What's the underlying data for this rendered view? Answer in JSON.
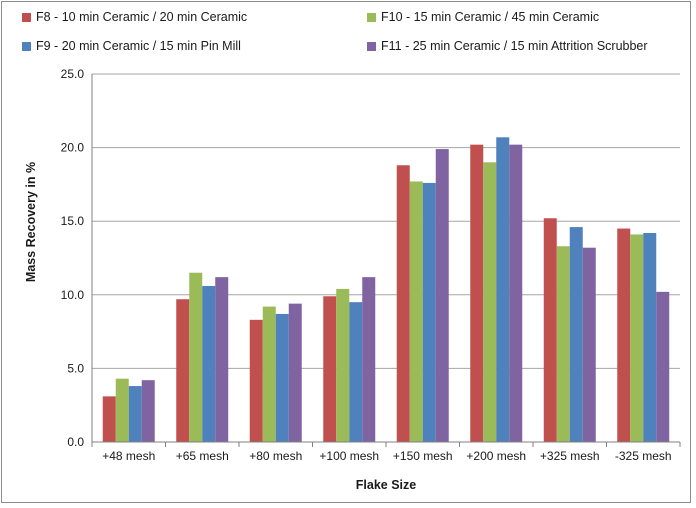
{
  "chart_data": {
    "type": "bar",
    "title": "",
    "xlabel": "Flake Size",
    "ylabel": "Mass Recovery in %",
    "ylim": [
      0,
      25
    ],
    "yticks": [
      "0.0",
      "5.0",
      "10.0",
      "15.0",
      "20.0",
      "25.0"
    ],
    "grid": "horizontal",
    "legend_position": "top",
    "categories": [
      "+48 mesh",
      "+65 mesh",
      "+80 mesh",
      "+100 mesh",
      "+150 mesh",
      "+200 mesh",
      "+325 mesh",
      "-325 mesh"
    ],
    "series": [
      {
        "name": "F8 - 10 min Ceramic / 20 min Ceramic",
        "color": "#c0504d",
        "values": [
          3.1,
          9.7,
          8.3,
          9.9,
          18.8,
          20.2,
          15.2,
          14.5
        ]
      },
      {
        "name": "F9 - 20 min Ceramic / 15 min Pin Mill",
        "color": "#4f81bd",
        "values": [
          3.8,
          10.6,
          8.7,
          9.5,
          17.6,
          20.7,
          14.6,
          14.2
        ]
      },
      {
        "name": "F10 - 15 min Ceramic / 45 min Ceramic",
        "color": "#9bbb59",
        "values": [
          4.3,
          11.5,
          9.2,
          10.4,
          17.7,
          19.0,
          13.3,
          14.1
        ]
      },
      {
        "name": "F11 - 25 min Ceramic / 15 min Attrition Scrubber",
        "color": "#8064a2",
        "values": [
          4.2,
          11.2,
          9.4,
          11.2,
          19.9,
          20.2,
          13.2,
          10.2
        ]
      }
    ],
    "bar_order": [
      0,
      2,
      1,
      3
    ]
  }
}
